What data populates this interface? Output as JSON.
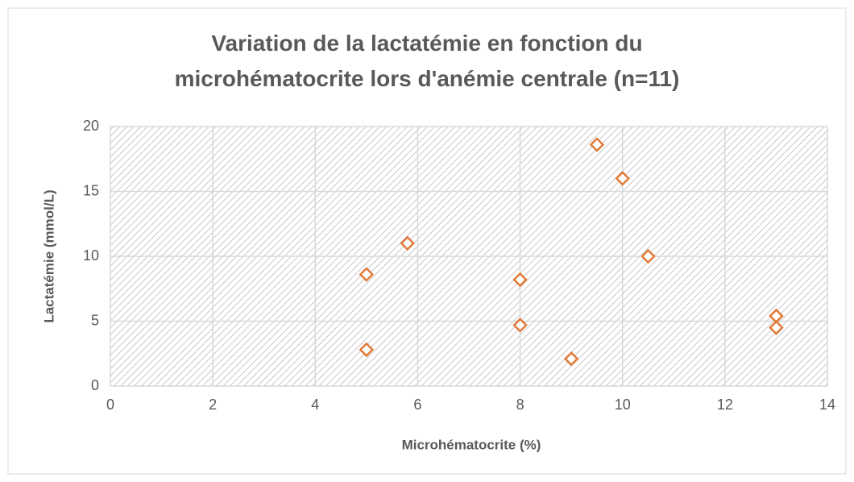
{
  "chart_data": {
    "type": "scatter",
    "title": "Variation de la lactatémie en fonction du microhématocrite lors d'anémie centrale (n=11)",
    "xlabel": "Microhématocrite (%)",
    "ylabel": "Lactatémie (mmol/L)",
    "series": [
      {
        "name": "Lactatémie",
        "color": "#e07b39",
        "x": [
          5,
          5,
          5.8,
          8,
          8,
          9,
          9.5,
          10,
          10.5,
          13,
          13
        ],
        "values": [
          8.6,
          2.8,
          11,
          8.2,
          4.7,
          2.1,
          18.6,
          16,
          10,
          5.4,
          4.5
        ]
      }
    ],
    "xlim": [
      0,
      14
    ],
    "xticks": [
      0,
      2,
      4,
      6,
      8,
      10,
      12,
      14
    ],
    "ylim": [
      0,
      20
    ],
    "yticks": [
      0,
      5,
      10,
      15,
      20
    ],
    "grid": true
  }
}
